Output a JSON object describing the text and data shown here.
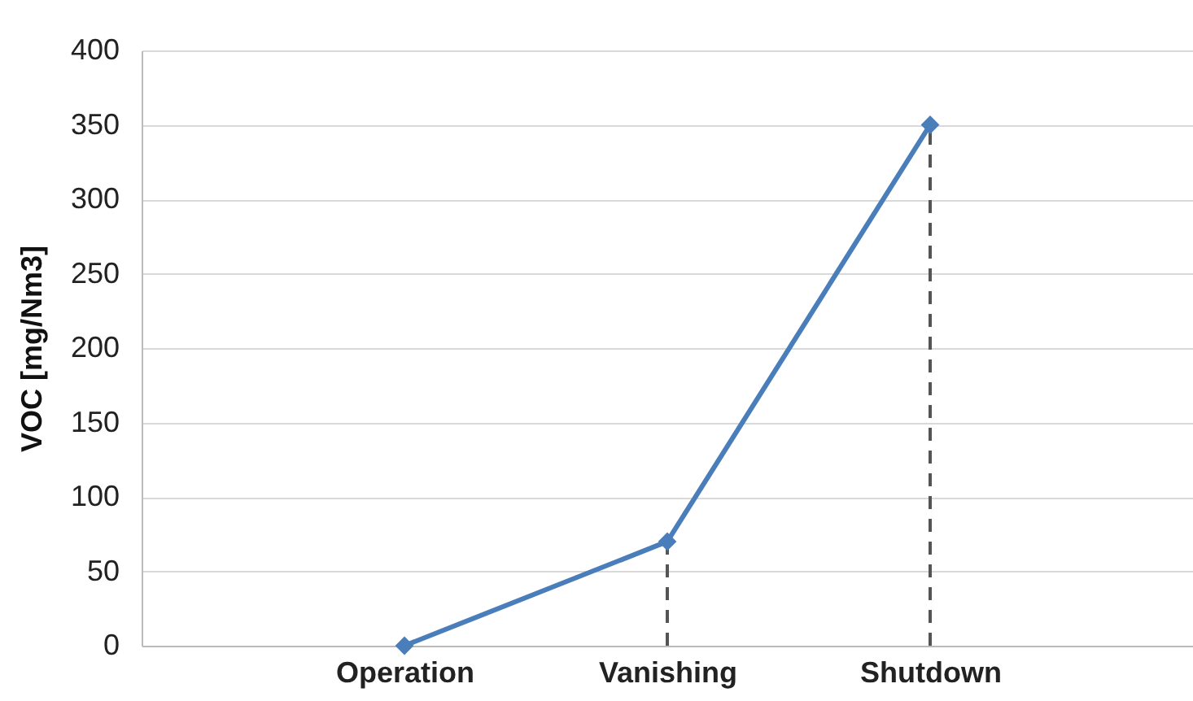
{
  "chart_data": {
    "type": "line",
    "ylabel": "VOC [mg/Nm3]",
    "categories": [
      "Operation",
      "Vanishing",
      "Shutdown"
    ],
    "series": [
      {
        "color": "#4a7ebb",
        "values": [
          0,
          70,
          350
        ],
        "errors": [
          null,
          [
            0,
            70
          ],
          [
            0,
            350
          ]
        ]
      }
    ],
    "ylim": [
      0,
      400
    ],
    "yticks": [
      0,
      50,
      100,
      150,
      200,
      250,
      300,
      350,
      400
    ],
    "grid": "y",
    "marker": "diamond",
    "line_style": "solid"
  }
}
